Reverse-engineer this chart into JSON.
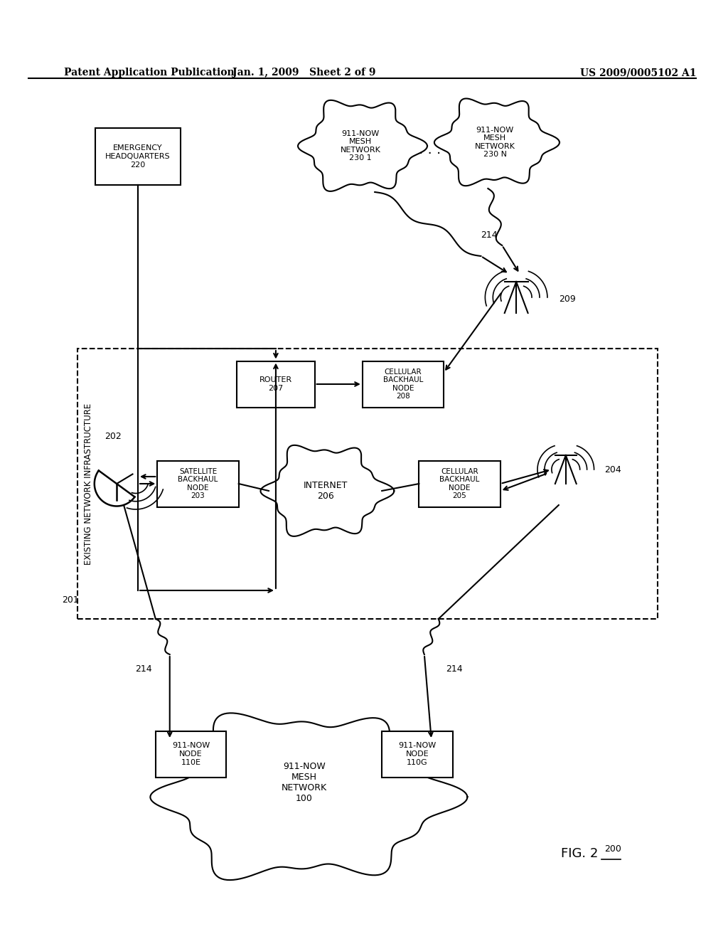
{
  "bg_color": "#ffffff",
  "text_color": "#000000",
  "header_left": "Patent Application Publication",
  "header_center": "Jan. 1, 2009   Sheet 2 of 9",
  "header_right": "US 2009/0005102 A1",
  "fig_label": "FIG. 2",
  "fig_number": "200",
  "label_201": "201",
  "label_202": "202",
  "label_203": "SATELLITE\nBACKHAUL\nNODE\n203",
  "label_204": "204",
  "label_205": "CELLULAR\nBACKHAUL\nNODE\n205",
  "label_206": "INTERNET\n206",
  "label_207": "ROUTER\n207",
  "label_208": "CELLULAR\nBACKHAUL\nNODE\n208",
  "label_209": "209",
  "label_214": "214",
  "label_220": "EMERGENCY\nHEADQUARTERS\n220",
  "label_230_1": "911-NOW\nMESH\nNETWORK\n230 1",
  "label_230_N": "911-NOW\nMESH\nNETWORK\n230 N",
  "label_110E": "911-NOW\nNODE\n110E",
  "label_110G": "911-NOW\nNODE\n110G",
  "label_100": "911-NOW\nMESH\nNETWORK\n100",
  "label_infra": "EXISTING NETWORK INFRASTRUCTURE"
}
